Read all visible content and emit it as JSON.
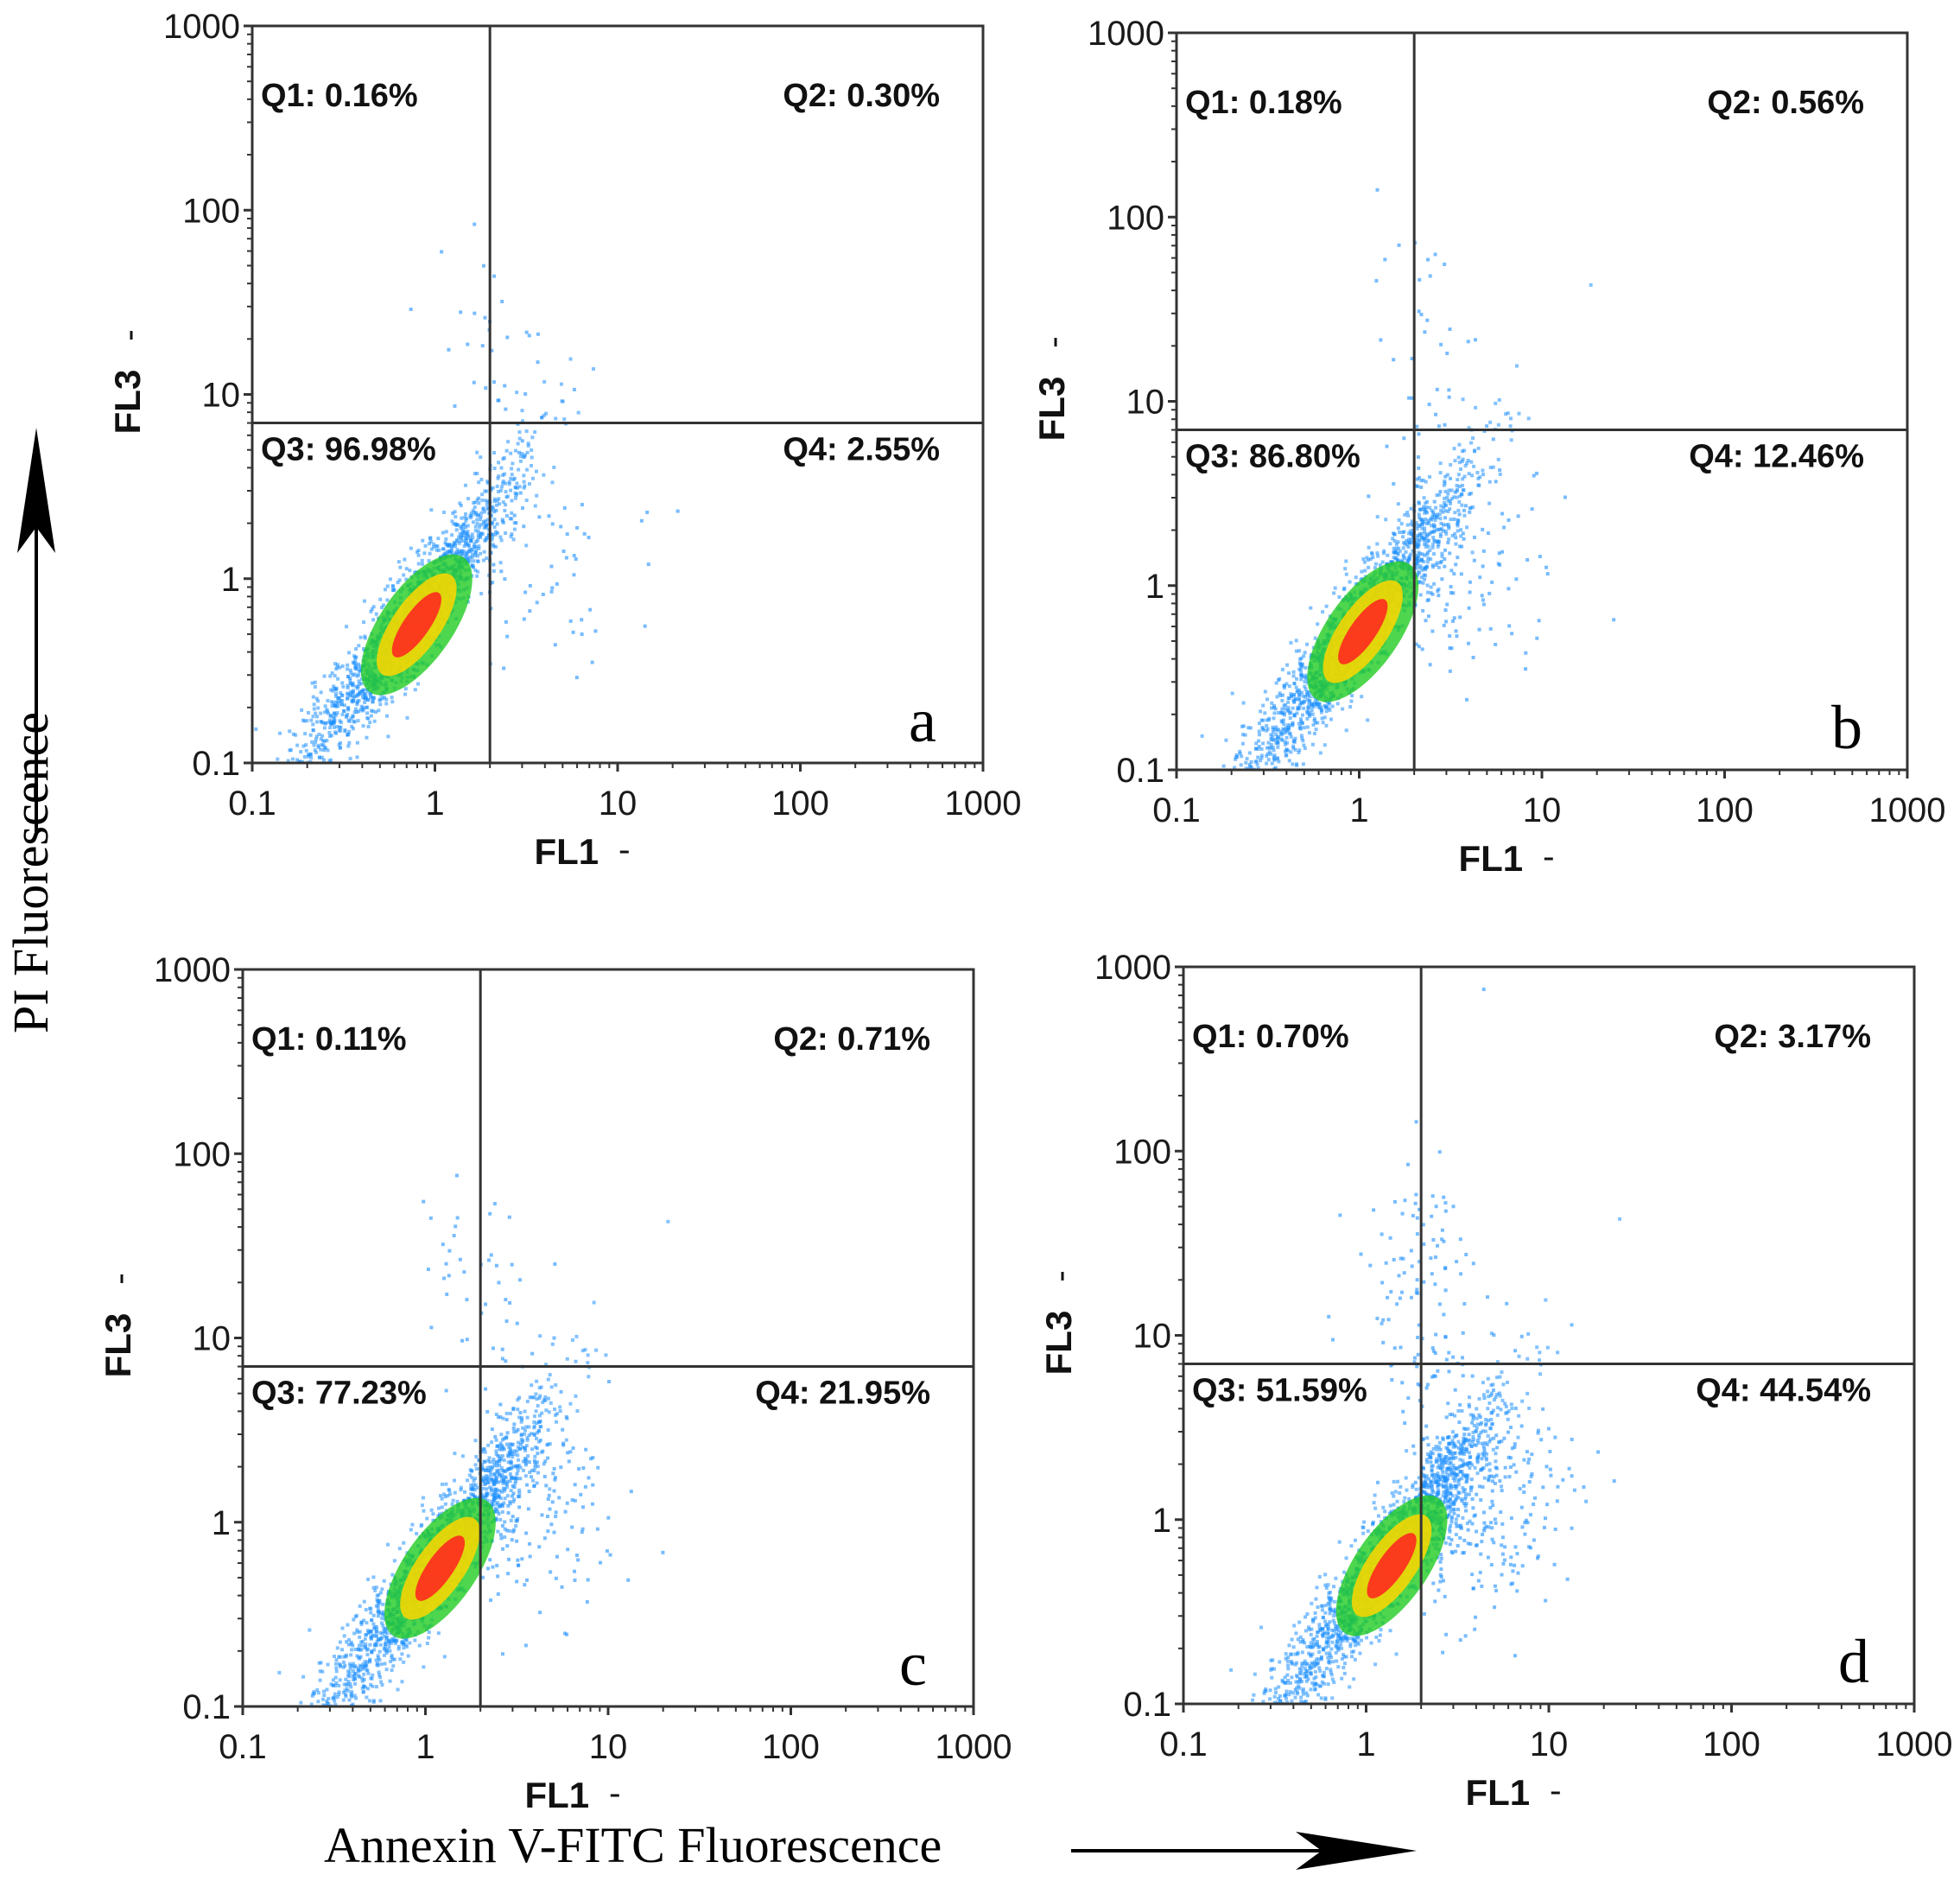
{
  "chart_data": {
    "type": "scatter",
    "axis_scale": "log",
    "xlim": [
      0.1,
      1000
    ],
    "ylim": [
      0.1,
      1000
    ],
    "tick_values": [
      0.1,
      1,
      10,
      100,
      1000
    ],
    "tick_labels": [
      "0.1",
      "1",
      "10",
      "100",
      "1000"
    ],
    "global_xlabel": "Annexin V-FITC Fluorescence",
    "global_ylabel": "PI Fluorescence",
    "panels": [
      {
        "label": "a",
        "xlabel": "FL1",
        "ylabel": "FL3",
        "gate": {
          "x": 2.0,
          "y": 7.0
        },
        "quadrants": {
          "Q1": "Q1: 0.16%",
          "Q2": "Q2: 0.30%",
          "Q3": "Q3: 96.98%",
          "Q4": "Q4: 2.55%"
        },
        "quadrant_values": {
          "Q1": 0.16,
          "Q2": 0.3,
          "Q3": 96.98,
          "Q4": 2.55
        }
      },
      {
        "label": "b",
        "xlabel": "FL1",
        "ylabel": "FL3",
        "gate": {
          "x": 2.0,
          "y": 7.0
        },
        "quadrants": {
          "Q1": "Q1: 0.18%",
          "Q2": "Q2: 0.56%",
          "Q3": "Q3: 86.80%",
          "Q4": "Q4: 12.46%"
        },
        "quadrant_values": {
          "Q1": 0.18,
          "Q2": 0.56,
          "Q3": 86.8,
          "Q4": 12.46
        }
      },
      {
        "label": "c",
        "xlabel": "FL1",
        "ylabel": "FL3",
        "gate": {
          "x": 2.0,
          "y": 7.0
        },
        "quadrants": {
          "Q1": "Q1: 0.11%",
          "Q2": "Q2: 0.71%",
          "Q3": "Q3: 77.23%",
          "Q4": "Q4: 21.95%"
        },
        "quadrant_values": {
          "Q1": 0.11,
          "Q2": 0.71,
          "Q3": 77.23,
          "Q4": 21.95
        }
      },
      {
        "label": "d",
        "xlabel": "FL1",
        "ylabel": "FL3",
        "gate": {
          "x": 2.0,
          "y": 7.0
        },
        "quadrants": {
          "Q1": "Q1: 0.70%",
          "Q2": "Q2: 3.17%",
          "Q3": "Q3: 51.59%",
          "Q4": "Q4: 44.54%"
        },
        "quadrant_values": {
          "Q1": 0.7,
          "Q2": 3.17,
          "Q3": 51.59,
          "Q4": 44.54
        }
      }
    ],
    "colors": {
      "scatter": "#1e90ff",
      "density_mid": "#22cc22",
      "density_high": "#ffd700",
      "density_peak": "#ff2020",
      "axes": "#333333"
    }
  }
}
